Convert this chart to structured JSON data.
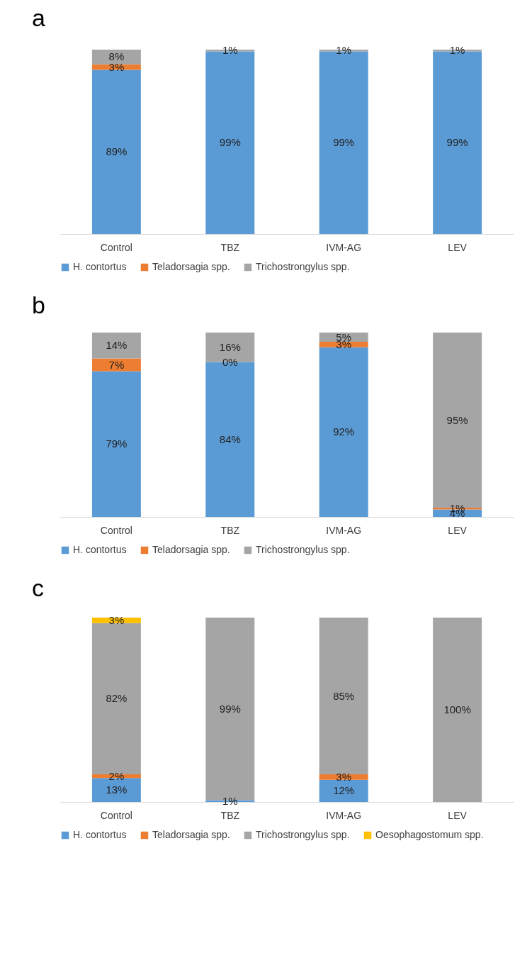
{
  "chart_data": [
    {
      "type": "bar",
      "title": "a",
      "stacked": true,
      "legend": "bottom",
      "data_labels": false,
      "categories": [
        "Control",
        "TBZ",
        "IVM-AG",
        "LEV"
      ],
      "series": [
        {
          "name": "H. contortus",
          "color": "#5b9bd5",
          "values": [
            89,
            99,
            99,
            99
          ],
          "value_labels": [
            "89%",
            "99%",
            "99%",
            "99%"
          ]
        },
        {
          "name": "Teladorsagia spp.",
          "color": "#ed7d31",
          "values": [
            3,
            null,
            null,
            null
          ],
          "value_labels": [
            "3%",
            null,
            null,
            null
          ]
        },
        {
          "name": "Trichostrongylus spp.",
          "color": "#a5a5a5",
          "values": [
            8,
            1,
            1,
            1
          ],
          "value_labels": [
            "8%",
            "1%",
            "1%",
            "1%"
          ]
        }
      ]
    },
    {
      "type": "bar",
      "title": "b",
      "stacked": true,
      "legend": "bottom",
      "data_labels": false,
      "categories": [
        "Control",
        "TBZ",
        "IVM-AG",
        "LEV"
      ],
      "series": [
        {
          "name": "H. contortus",
          "color": "#5b9bd5",
          "values": [
            79,
            84,
            92,
            4
          ],
          "value_labels": [
            "79%",
            "84%",
            "92%",
            "4%"
          ]
        },
        {
          "name": "Teladorsagia spp.",
          "color": "#ed7d31",
          "values": [
            7,
            0,
            3,
            1
          ],
          "value_labels": [
            "7%",
            "0%",
            "3%",
            "1%"
          ]
        },
        {
          "name": "Trichostrongylus spp.",
          "color": "#a5a5a5",
          "values": [
            14,
            16,
            5,
            95
          ],
          "value_labels": [
            "14%",
            "16%",
            "5%",
            "95%"
          ]
        }
      ]
    },
    {
      "type": "bar",
      "title": "c",
      "stacked": true,
      "legend": "bottom",
      "data_labels": false,
      "categories": [
        "Control",
        "TBZ",
        "IVM-AG",
        "LEV"
      ],
      "series": [
        {
          "name": "H. contortus",
          "color": "#5b9bd5",
          "values": [
            13,
            1,
            12,
            null
          ],
          "value_labels": [
            "13%",
            "1%",
            "12%",
            null
          ]
        },
        {
          "name": "Teladorsagia spp.",
          "color": "#ed7d31",
          "values": [
            2,
            null,
            3,
            null
          ],
          "value_labels": [
            "2%",
            null,
            "3%",
            null
          ]
        },
        {
          "name": "Trichostrongylus spp.",
          "color": "#a5a5a5",
          "values": [
            82,
            99,
            85,
            100
          ],
          "value_labels": [
            "82%",
            "99%",
            "85%",
            "100%"
          ]
        },
        {
          "name": "Oesophagostomum spp.",
          "color": "#ffc000",
          "values": [
            3,
            null,
            null,
            null
          ],
          "value_labels": [
            "3%",
            null,
            null,
            null
          ]
        }
      ]
    }
  ]
}
